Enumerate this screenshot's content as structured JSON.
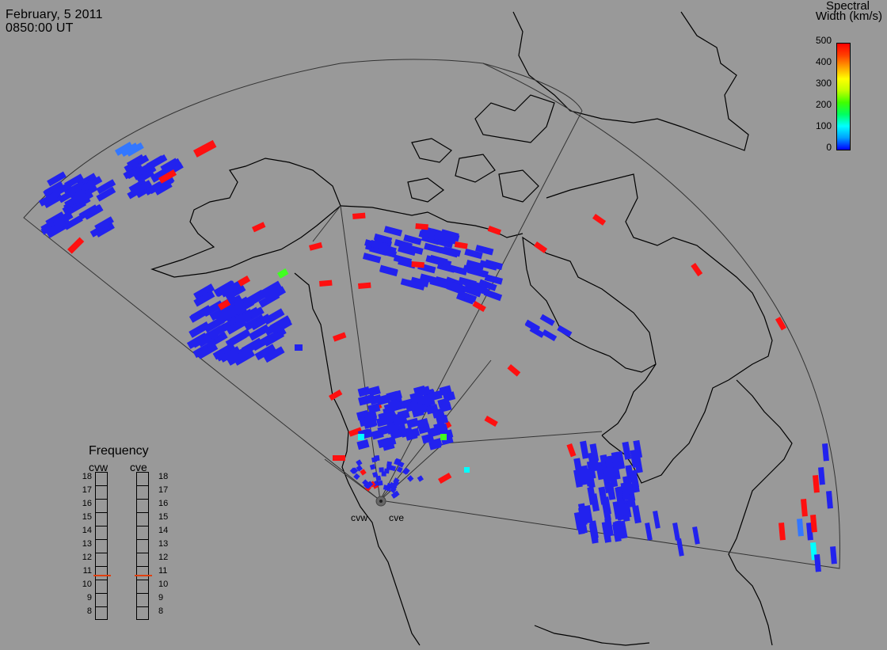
{
  "header": {
    "date": "February, 5 2011",
    "time": "0850:00 UT"
  },
  "colorbar": {
    "title_line1": "Spectral",
    "title_line2": "Width (km/s)",
    "ticks": [
      "500",
      "400",
      "300",
      "200",
      "100",
      "0"
    ],
    "colors": [
      "#0000ff",
      "#00a0ff",
      "#00ffff",
      "#00ff60",
      "#40ff00",
      "#c0ff00",
      "#ffff00",
      "#ffa000",
      "#ff4000",
      "#ff0000"
    ]
  },
  "frequency": {
    "title": "Frequency",
    "radars": [
      "cvw",
      "cve"
    ],
    "scale": [
      "18",
      "17",
      "16",
      "15",
      "14",
      "13",
      "12",
      "11",
      "10",
      "9",
      "8"
    ],
    "min_mhz": 8,
    "max_mhz": 18,
    "current_mhz": [
      10.8,
      10.8
    ]
  },
  "radar_sites": {
    "west": "cvw",
    "east": "cve"
  },
  "map": {
    "background": "#999999",
    "coast_color": "#000000",
    "fan_color": "#333333"
  }
}
